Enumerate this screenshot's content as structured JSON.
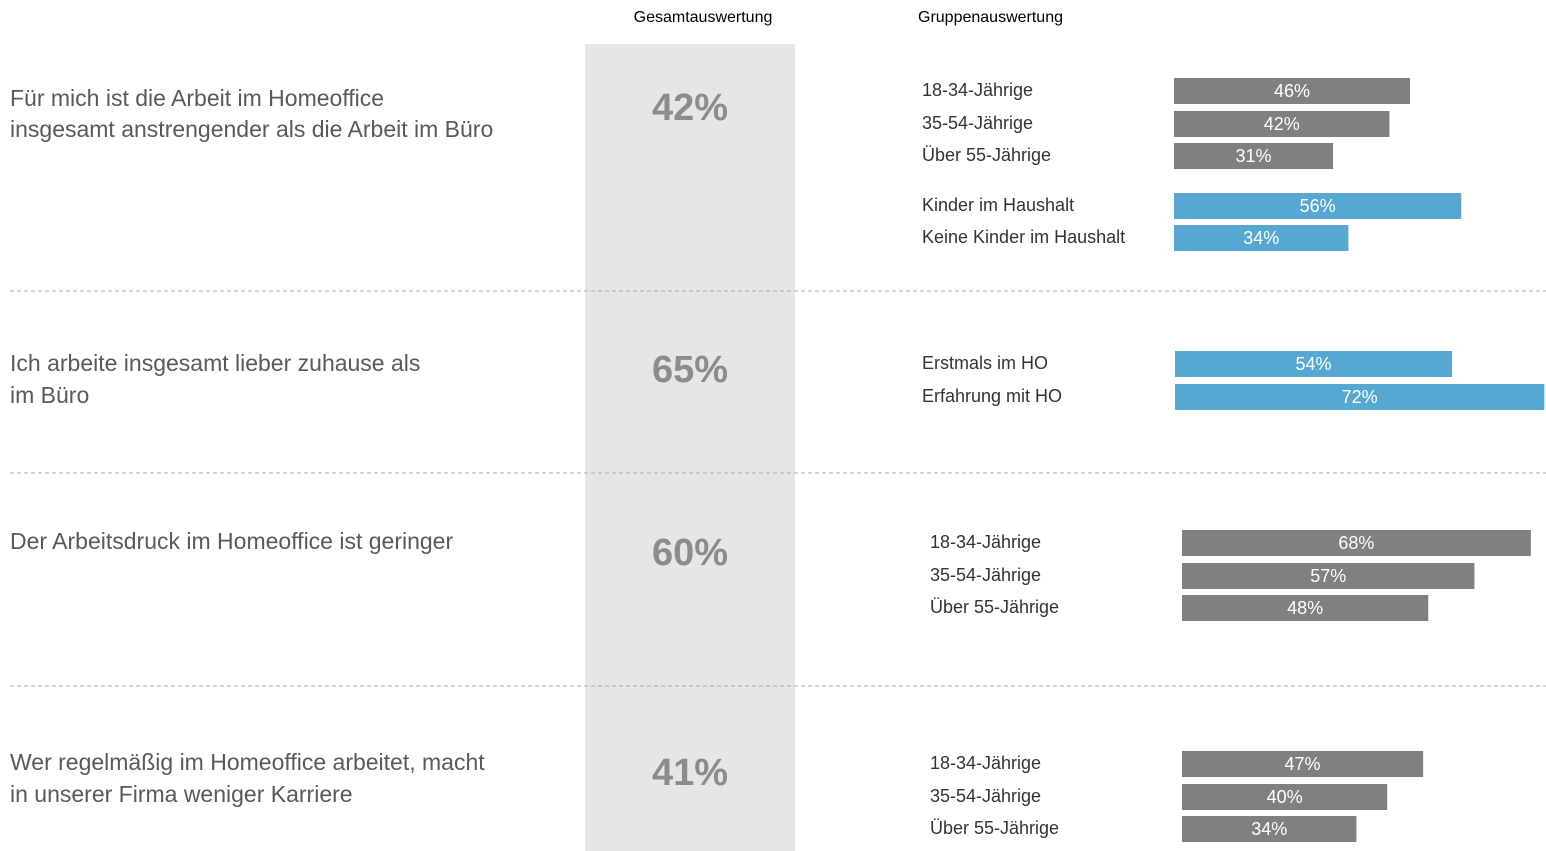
{
  "header": {
    "overall": "Gesamtauswertung",
    "groups": "Gruppenauswertung"
  },
  "chart_data": [
    {
      "type": "bar",
      "title": [
        "Für mich ist die Arbeit im Homeoffice",
        "insgesamt anstrengender als die Arbeit im Büro"
      ],
      "overall": {
        "value": 42,
        "label": "42%"
      },
      "categories": [
        "18-34-Jährige",
        "35-54-Jährige",
        "Über 55-Jährige",
        "Kinder im Haushalt",
        "Keine Kinder im Haushalt"
      ],
      "values": [
        46,
        42,
        31,
        56,
        34
      ],
      "value_labels": [
        "46%",
        "42%",
        "31%",
        "56%",
        "34%"
      ],
      "colors": [
        "#808080",
        "#808080",
        "#808080",
        "#56a8d2",
        "#56a8d2"
      ]
    },
    {
      "type": "bar",
      "title": [
        "Ich arbeite insgesamt lieber zuhause als",
        "im Büro"
      ],
      "overall": {
        "value": 65,
        "label": "65%"
      },
      "categories": [
        "Erstmals im HO",
        "Erfahrung mit HO"
      ],
      "values": [
        54,
        72
      ],
      "value_labels": [
        "54%",
        "72%"
      ],
      "colors": [
        "#56a8d2",
        "#56a8d2"
      ]
    },
    {
      "type": "bar",
      "title": [
        "Der Arbeitsdruck im Homeoffice ist geringer"
      ],
      "overall": {
        "value": 60,
        "label": "60%"
      },
      "categories": [
        "18-34-Jährige",
        "35-54-Jährige",
        "Über 55-Jährige"
      ],
      "values": [
        68,
        57,
        48
      ],
      "value_labels": [
        "68%",
        "57%",
        "48%"
      ],
      "colors": [
        "#808080",
        "#808080",
        "#808080"
      ]
    },
    {
      "type": "bar",
      "title": [
        "Wer regelmäßig im Homeoffice arbeitet, macht",
        "in unserer Firma weniger Karriere"
      ],
      "overall": {
        "value": 41,
        "label": "41%"
      },
      "categories": [
        "18-34-Jährige",
        "35-54-Jährige",
        "Über 55-Jährige"
      ],
      "values": [
        47,
        40,
        34
      ],
      "value_labels": [
        "47%",
        "40%",
        "34%"
      ],
      "colors": [
        "#808080",
        "#808080",
        "#808080"
      ]
    }
  ]
}
